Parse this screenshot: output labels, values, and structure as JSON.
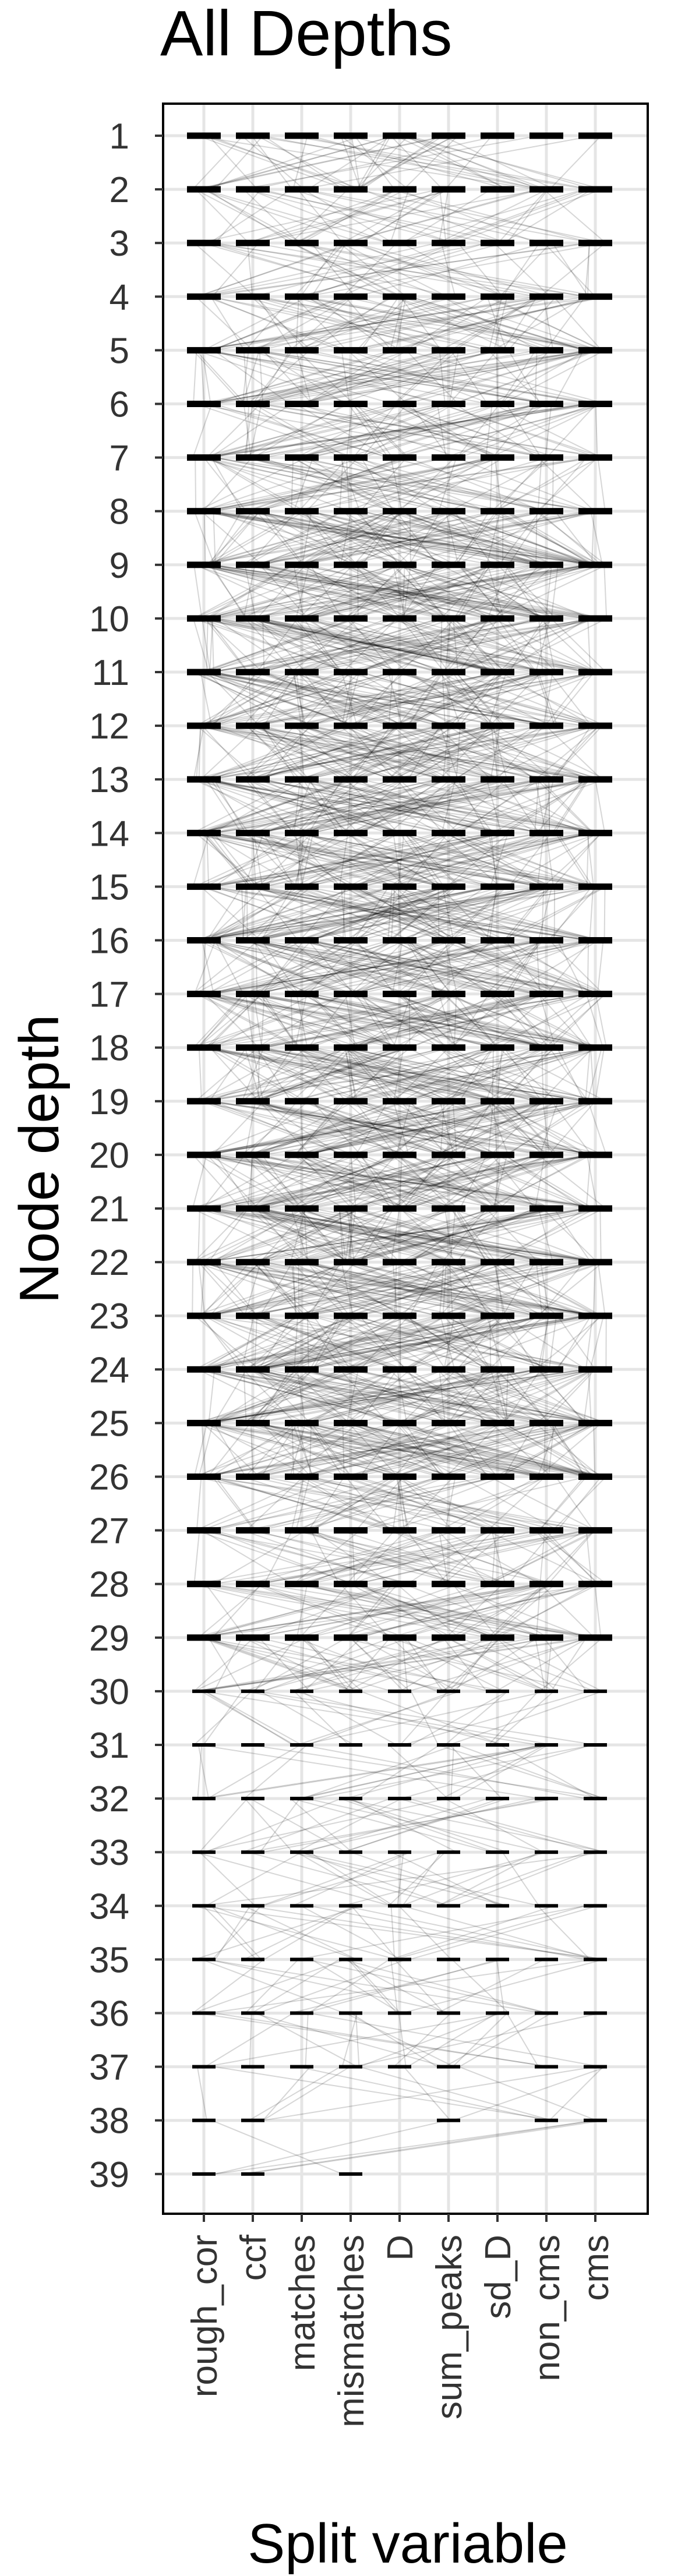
{
  "chart_data": {
    "type": "scatter",
    "title": "All Depths",
    "xlabel": "Split variable",
    "ylabel": "Node depth",
    "categories": [
      "rough_cor",
      "ccf",
      "matches",
      "mismatches",
      "D",
      "sum_peaks",
      "sd_D",
      "non_cms",
      "cms"
    ],
    "depths": [
      1,
      2,
      3,
      4,
      5,
      6,
      7,
      8,
      9,
      10,
      11,
      12,
      13,
      14,
      15,
      16,
      17,
      18,
      19,
      20,
      21,
      22,
      23,
      24,
      25,
      26,
      27,
      28,
      29,
      30,
      31,
      32,
      33,
      34,
      35,
      36,
      37,
      38,
      39
    ],
    "y_reversed": true,
    "ylim": [
      1,
      39
    ],
    "grid": true,
    "legend": "none",
    "colors": {
      "marks": "#000000",
      "grid": "#e5e5e5",
      "panel_border": "#000000"
    },
    "series": [
      {
        "category": "rough_cor",
        "depths": [
          1,
          2,
          3,
          4,
          5,
          6,
          7,
          8,
          9,
          10,
          11,
          12,
          13,
          14,
          15,
          16,
          17,
          18,
          19,
          20,
          21,
          22,
          23,
          24,
          25,
          26,
          27,
          28,
          29,
          30,
          31,
          32,
          33,
          34,
          35,
          36,
          37,
          38,
          39
        ]
      },
      {
        "category": "ccf",
        "depths": [
          1,
          2,
          3,
          4,
          5,
          6,
          7,
          8,
          9,
          10,
          11,
          12,
          13,
          14,
          15,
          16,
          17,
          18,
          19,
          20,
          21,
          22,
          23,
          24,
          25,
          26,
          27,
          28,
          29,
          30,
          31,
          32,
          33,
          34,
          35,
          36,
          37,
          38,
          39
        ]
      },
      {
        "category": "matches",
        "depths": [
          1,
          2,
          3,
          4,
          5,
          6,
          7,
          8,
          9,
          10,
          11,
          12,
          13,
          14,
          15,
          16,
          17,
          18,
          19,
          20,
          21,
          22,
          23,
          24,
          25,
          26,
          27,
          28,
          29,
          30,
          31,
          32,
          33,
          34,
          35,
          36,
          37
        ]
      },
      {
        "category": "mismatches",
        "depths": [
          1,
          2,
          3,
          4,
          5,
          6,
          7,
          8,
          9,
          10,
          11,
          12,
          13,
          14,
          15,
          16,
          17,
          18,
          19,
          20,
          21,
          22,
          23,
          24,
          25,
          26,
          27,
          28,
          29,
          30,
          31,
          32,
          33,
          34,
          35,
          36,
          37,
          39
        ]
      },
      {
        "category": "D",
        "depths": [
          1,
          2,
          3,
          4,
          5,
          6,
          7,
          8,
          9,
          10,
          11,
          12,
          13,
          14,
          15,
          16,
          17,
          18,
          19,
          20,
          21,
          22,
          23,
          24,
          25,
          26,
          27,
          28,
          29,
          30,
          31,
          32,
          33,
          34,
          35,
          36,
          37
        ]
      },
      {
        "category": "sum_peaks",
        "depths": [
          1,
          2,
          3,
          4,
          5,
          6,
          7,
          8,
          9,
          10,
          11,
          12,
          13,
          14,
          15,
          16,
          17,
          18,
          19,
          20,
          21,
          22,
          23,
          24,
          25,
          26,
          27,
          28,
          29,
          30,
          31,
          32,
          33,
          34,
          35,
          36,
          37,
          38
        ]
      },
      {
        "category": "sd_D",
        "depths": [
          1,
          2,
          3,
          4,
          5,
          6,
          7,
          8,
          9,
          10,
          11,
          12,
          13,
          14,
          15,
          16,
          17,
          18,
          19,
          20,
          21,
          22,
          23,
          24,
          25,
          26,
          27,
          28,
          29,
          30,
          31,
          32,
          33,
          34,
          35,
          36
        ]
      },
      {
        "category": "non_cms",
        "depths": [
          1,
          2,
          3,
          4,
          5,
          6,
          7,
          8,
          9,
          10,
          11,
          12,
          13,
          14,
          15,
          16,
          17,
          18,
          19,
          20,
          21,
          22,
          23,
          24,
          25,
          26,
          27,
          28,
          29,
          30,
          31,
          32,
          33,
          34,
          35,
          36,
          37,
          38
        ]
      },
      {
        "category": "cms",
        "depths": [
          1,
          2,
          3,
          4,
          5,
          6,
          7,
          8,
          9,
          10,
          11,
          12,
          13,
          14,
          15,
          16,
          17,
          18,
          19,
          20,
          21,
          22,
          23,
          24,
          25,
          26,
          27,
          28,
          29,
          30,
          31,
          32,
          33,
          34,
          35,
          36,
          37,
          38
        ]
      }
    ]
  }
}
